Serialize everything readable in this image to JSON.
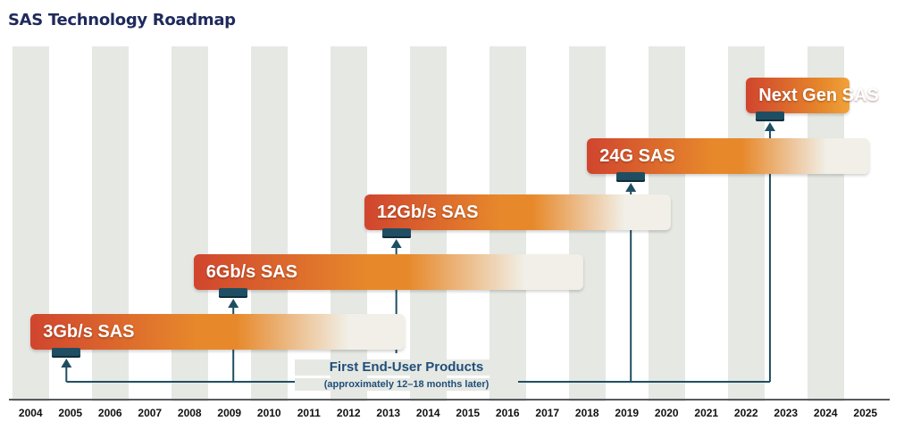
{
  "header": {
    "title": "SAS Technology Roadmap"
  },
  "colors": {
    "bar_start": "#d0452e",
    "bar_mid": "#e7892b",
    "bar_fade": "#f1efe7",
    "connector": "#1f4e63",
    "label_text": "#1f4e79"
  },
  "timeline": {
    "years": [
      "2004",
      "2005",
      "2006",
      "2007",
      "2008",
      "2009",
      "2010",
      "2011",
      "2012",
      "2013",
      "2014",
      "2015",
      "2016",
      "2017",
      "2018",
      "2019",
      "2020",
      "2021",
      "2022",
      "2023",
      "2024",
      "2025"
    ]
  },
  "generations": [
    {
      "label": "3Gb/s SAS",
      "start_year": 2004.5,
      "end_year": 2013.9,
      "product_year": 2005.4
    },
    {
      "label": "6Gb/s SAS",
      "start_year": 2008.6,
      "end_year": 2018.4,
      "product_year": 2009.6
    },
    {
      "label": "12Gb/s SAS",
      "start_year": 2012.9,
      "end_year": 2020.6,
      "product_year": 2013.7
    },
    {
      "label": "24G SAS",
      "start_year": 2018.5,
      "end_year": 2025.6,
      "product_year": 2019.6
    },
    {
      "label": "Next Gen SAS",
      "start_year": 2022.5,
      "end_year": 2025.1,
      "product_year": 2023.1
    }
  ],
  "annotation": {
    "main": "First End-User Products",
    "sub": "(approximately 12–18 months later)"
  }
}
